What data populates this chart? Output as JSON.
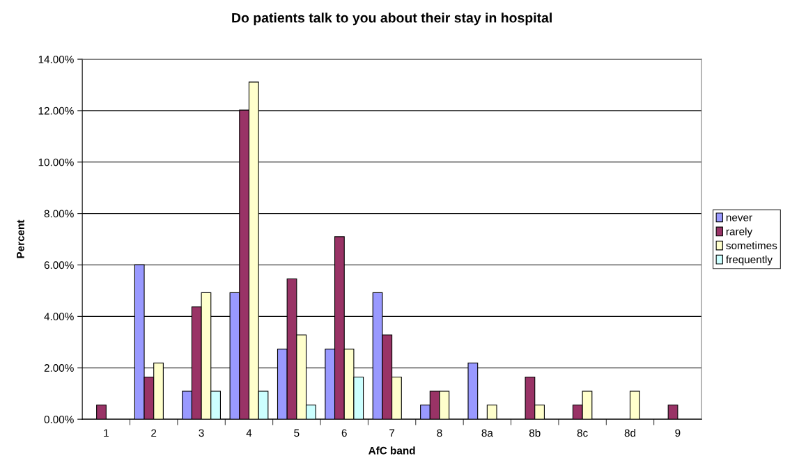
{
  "chart_data": {
    "type": "bar",
    "title": "Do patients talk to you about their stay in hospital",
    "xlabel": "AfC band",
    "ylabel": "Percent",
    "categories": [
      "1",
      "2",
      "3",
      "4",
      "5",
      "6",
      "7",
      "8",
      "8a",
      "8b",
      "8c",
      "8d",
      "9"
    ],
    "series": [
      {
        "name": "never",
        "color": "#9999ff",
        "values": [
          null,
          6.01,
          1.09,
          4.92,
          2.73,
          2.73,
          4.92,
          0.55,
          2.19,
          null,
          null,
          null,
          null
        ]
      },
      {
        "name": "rarely",
        "color": "#993366",
        "values": [
          0.55,
          1.64,
          4.37,
          12.02,
          5.46,
          7.1,
          3.28,
          1.09,
          null,
          1.64,
          0.55,
          null,
          0.55
        ]
      },
      {
        "name": "sometimes",
        "color": "#ffffcc",
        "values": [
          null,
          2.19,
          4.92,
          13.11,
          3.28,
          2.73,
          1.64,
          1.09,
          0.55,
          0.55,
          1.09,
          1.09,
          null
        ]
      },
      {
        "name": "frequently",
        "color": "#ccffff",
        "values": [
          null,
          null,
          1.09,
          1.09,
          0.55,
          1.64,
          null,
          null,
          null,
          null,
          null,
          null,
          null
        ]
      }
    ],
    "ylim": [
      0,
      14
    ],
    "yticks": [
      {
        "value": 0,
        "label": "0.00%"
      },
      {
        "value": 2,
        "label": "2.00%"
      },
      {
        "value": 4,
        "label": "4.00%"
      },
      {
        "value": 6,
        "label": "6.00%"
      },
      {
        "value": 8,
        "label": "8.00%"
      },
      {
        "value": 10,
        "label": "10.00%"
      },
      {
        "value": 12,
        "label": "12.00%"
      },
      {
        "value": 14,
        "label": "14.00%"
      }
    ],
    "grid": "y",
    "legend": "right"
  }
}
